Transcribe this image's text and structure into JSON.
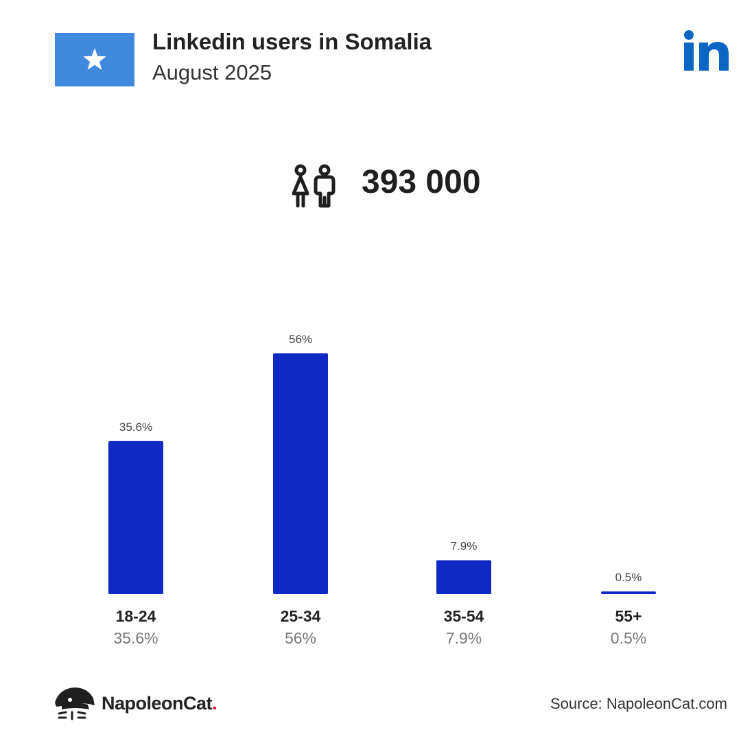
{
  "header": {
    "title": "Linkedin users in Somalia",
    "subtitle": "August 2025"
  },
  "flag": {
    "icon": "somalia-flag-icon",
    "color": "#4189dd",
    "star_color": "#ffffff"
  },
  "brand_logo": {
    "icon": "linkedin-logo-icon",
    "text": "in",
    "color": "#0a66c2"
  },
  "summary": {
    "icon": "users-icon",
    "total_users": "393 000"
  },
  "chart_data": {
    "type": "bar",
    "categories": [
      "18-24",
      "25-34",
      "35-54",
      "55+"
    ],
    "values": [
      35.6,
      56,
      7.9,
      0.5
    ],
    "value_labels": [
      "35.6%",
      "56%",
      "7.9%",
      "0.5%"
    ],
    "unit": "%",
    "bar_color": "#0f2ac4",
    "ylim": [
      0,
      56
    ],
    "grid": false
  },
  "footer": {
    "logo_icon": "napoleoncat-logo-icon",
    "brand_name": "NapoleonCat",
    "brand_dot": ".",
    "brand_dot_color": "#e2001a",
    "source": "Source: NapoleonCat.com"
  }
}
